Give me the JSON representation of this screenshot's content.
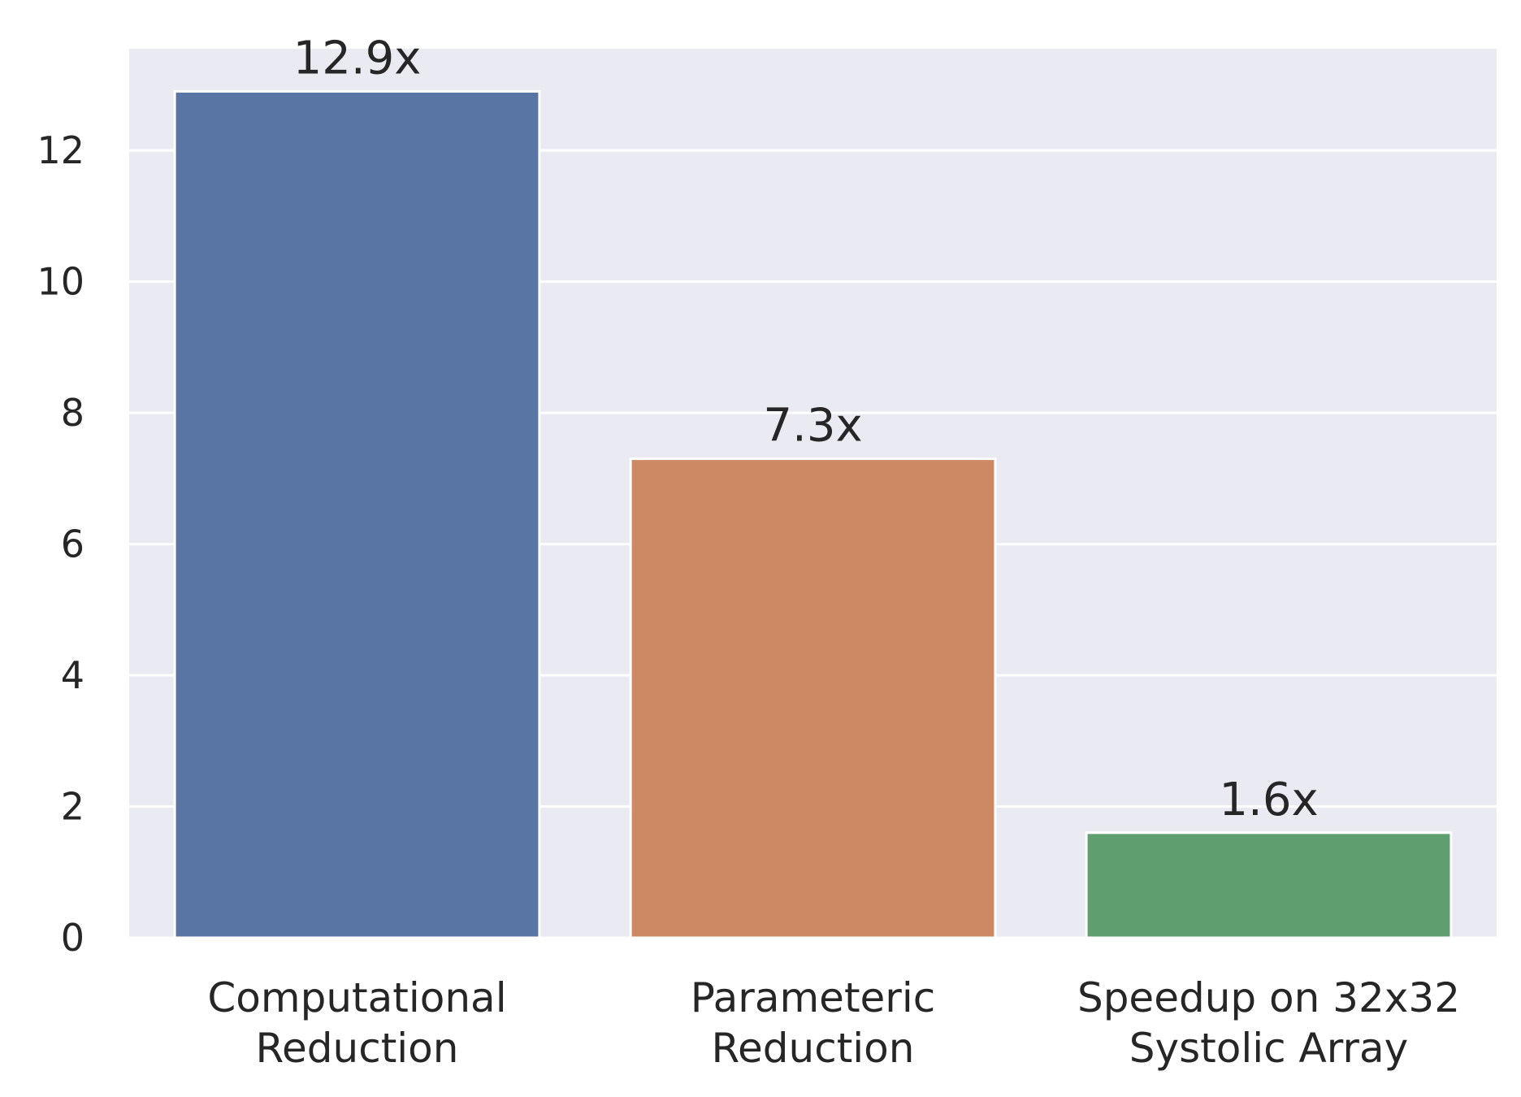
{
  "chart_data": {
    "type": "bar",
    "categories": [
      [
        "Computational",
        "Reduction"
      ],
      [
        "Parameteric",
        "Reduction"
      ],
      [
        "Speedup on 32x32",
        "Systolic Array"
      ]
    ],
    "values": [
      12.9,
      7.3,
      1.6
    ],
    "data_labels": [
      "12.9x",
      "7.3x",
      "1.6x"
    ],
    "colors": [
      "#5975a4",
      "#cc8963",
      "#5f9e6e"
    ],
    "yticks": [
      0,
      2,
      4,
      6,
      8,
      10,
      12
    ],
    "ylim": [
      0,
      13.55
    ],
    "grid": true,
    "background": "#eaeaf2",
    "gridline_color": "#ffffff"
  }
}
